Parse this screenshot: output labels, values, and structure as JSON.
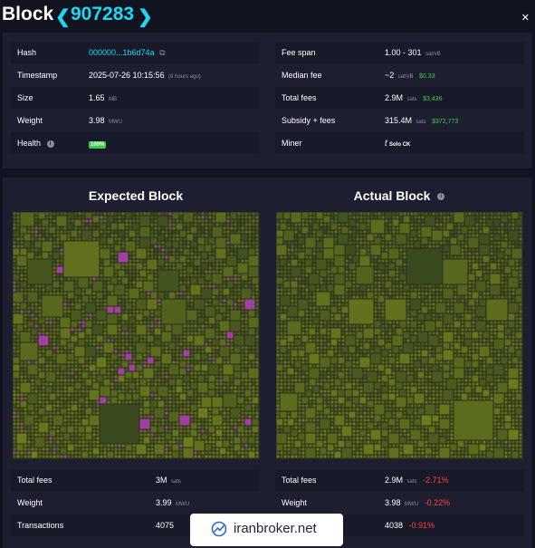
{
  "header": {
    "title": "Block",
    "prev_icon": "chevron-left-icon",
    "block_height": "907283",
    "next_icon": "chevron-right-icon",
    "close_label": "✕"
  },
  "details": {
    "left": [
      {
        "key": "Hash",
        "value": "000000...1b6d74a",
        "icon": "copy-icon"
      },
      {
        "key": "Timestamp",
        "value": "2025-07-26 10:15:56",
        "note": "(8 hours ago)"
      },
      {
        "key": "Size",
        "value": "1.65",
        "unit": "MB"
      },
      {
        "key": "Weight",
        "value": "3.98",
        "unit": "MWU"
      },
      {
        "key": "Health",
        "badge": "100%",
        "icon": "info-icon"
      }
    ],
    "right": [
      {
        "key": "Fee span",
        "value": "1.00 - 301",
        "unit": "sat/vB"
      },
      {
        "key": "Median fee",
        "value": "~2",
        "unit": "sat/vB",
        "fiat": "$0.33"
      },
      {
        "key": "Total fees",
        "value": "2.9M",
        "unit": "sats",
        "fiat": "$3,436"
      },
      {
        "key": "Subsidy + fees",
        "value": "315.4M",
        "unit": "sats",
        "fiat": "$372,773"
      },
      {
        "key": "Miner",
        "value": "Solo CK",
        "icon": "miner-logo-icon"
      }
    ]
  },
  "compare": {
    "expected_title": "Expected Block",
    "actual_title": "Actual Block",
    "expected": [
      {
        "key": "Total fees",
        "value": "3M",
        "unit": "sats"
      },
      {
        "key": "Weight",
        "value": "3.99",
        "unit": "MWU"
      },
      {
        "key": "Transactions",
        "value": "4075"
      }
    ],
    "actual": [
      {
        "key": "Total fees",
        "value": "2.9M",
        "unit": "sats",
        "delta": "-2.71%"
      },
      {
        "key": "Weight",
        "value": "3.98",
        "unit": "MWU",
        "delta": "-0.22%"
      },
      {
        "key": "Transactions",
        "value": "4038",
        "delta": "-0.91%"
      }
    ]
  },
  "colors": {
    "accent": "#1bd8f4",
    "green": "#3bcc49",
    "red": "#ff3d3d",
    "panel": "#1d1f31",
    "background": "#11131f",
    "tx_low": "#3a4a1e",
    "tx_high": "#6d7d1c",
    "tx_added": "#a23fa0"
  },
  "watermark": {
    "text": "iranbroker.net",
    "icon": "chart-logo-icon"
  }
}
